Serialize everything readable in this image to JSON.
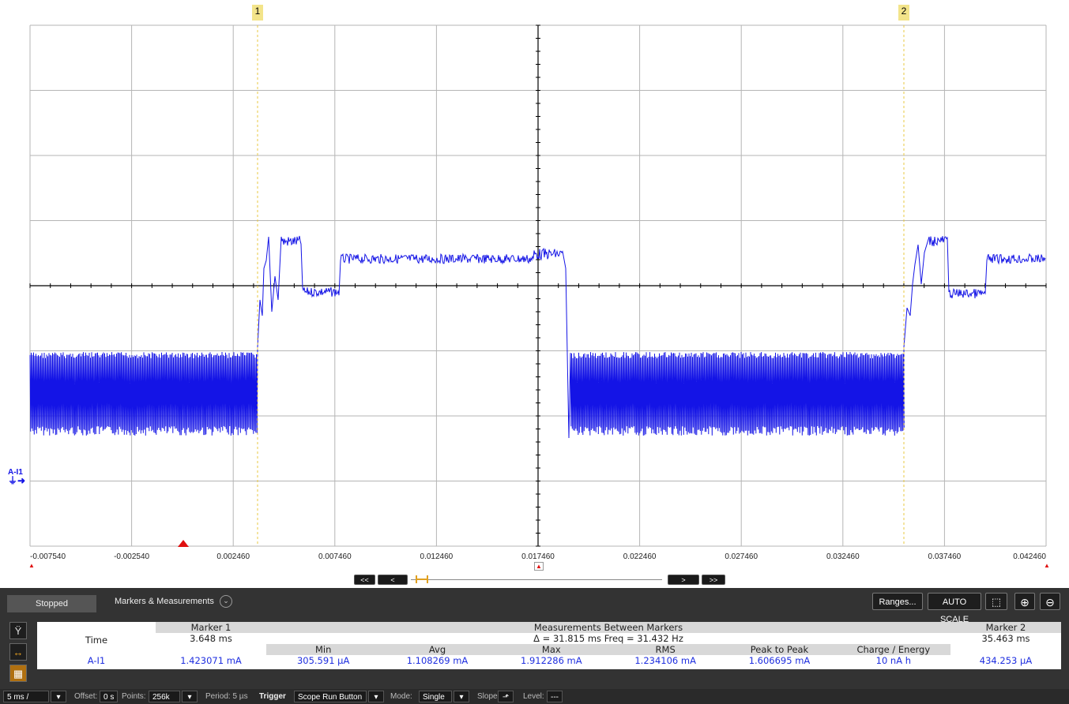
{
  "scope": {
    "channel_label": "A-I1",
    "x_ticks": [
      "-0.007540",
      "-0.002540",
      "0.002460",
      "0.007460",
      "0.012460",
      "0.017460",
      "0.022460",
      "0.027460",
      "0.032460",
      "0.037460",
      "0.042460"
    ],
    "marker1_label": "1",
    "marker2_label": "2",
    "trace_color": "#1414e6"
  },
  "nav": {
    "first": "<<",
    "prev": "<",
    "next": ">",
    "last": ">>"
  },
  "panel": {
    "status": "Stopped",
    "markers_title": "Markers & Measurements",
    "ranges_button": "Ranges...",
    "autoscale_button": "AUTO SCALE"
  },
  "measurements": {
    "marker1_header": "Marker 1",
    "marker2_header": "Marker 2",
    "between_header": "Measurements Between Markers",
    "delta_text": "Δ = 31.815 ms  Freq = 31.432 Hz",
    "time_label": "Time",
    "marker1_time": "3.648 ms",
    "marker2_time": "35.463 ms",
    "channel": "A-I1",
    "marker1_value": "1.423071 mA",
    "marker2_value": "434.253 µA",
    "columns": [
      "Min",
      "Avg",
      "Max",
      "RMS",
      "Peak to Peak",
      "Charge / Energy"
    ],
    "values": [
      "305.591 µA",
      "1.108269 mA",
      "1.912286 mA",
      "1.234106 mA",
      "1.606695 mA",
      "10 nA h"
    ]
  },
  "bottombar": {
    "timebase": "5 ms /",
    "offset_label": "Offset:",
    "offset_value": "0 s",
    "points_label": "Points:",
    "points_value": "256k",
    "period_label": "Period: 5 µs",
    "trigger_label": "Trigger",
    "trigger_value": "Scope Run Button",
    "mode_label": "Mode:",
    "mode_value": "Single",
    "slope_label": "Slope:",
    "level_label": "Level:",
    "level_value": "---"
  }
}
